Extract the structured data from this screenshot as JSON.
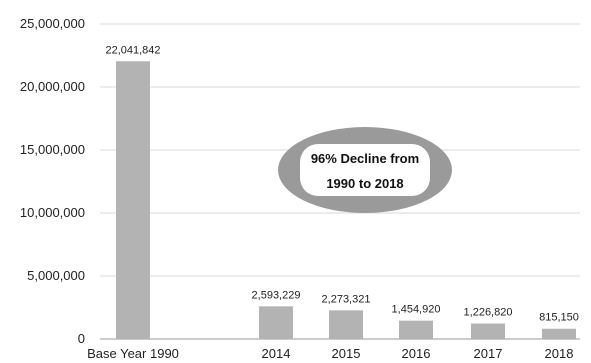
{
  "chart_data": {
    "type": "bar",
    "title": "",
    "xlabel": "",
    "ylabel": "",
    "categories": [
      "Base Year 1990",
      "2014",
      "2015",
      "2016",
      "2017",
      "2018"
    ],
    "values": [
      22041842,
      2593229,
      2273321,
      1454920,
      1226820,
      815150
    ],
    "data_labels": [
      "22,041,842",
      "2,593,229",
      "2,273,321",
      "1,454,920",
      "1,226,820",
      "815,150"
    ],
    "ylim": [
      0,
      25000000
    ],
    "yticks": [
      0,
      5000000,
      10000000,
      15000000,
      20000000,
      25000000
    ],
    "ytick_labels": [
      "0",
      "5,000,000",
      "10,000,000",
      "15,000,000",
      "20,000,000",
      "25,000,000"
    ],
    "grid": true,
    "legend": "none",
    "annotation": {
      "line1": "96% Decline from",
      "line2": "1990 to 2018"
    },
    "colors": {
      "bar": "#b3b3b3",
      "grid": "#d8d8d8",
      "callout_fill": "#9a9a9a",
      "callout_inner": "#ffffff"
    }
  }
}
